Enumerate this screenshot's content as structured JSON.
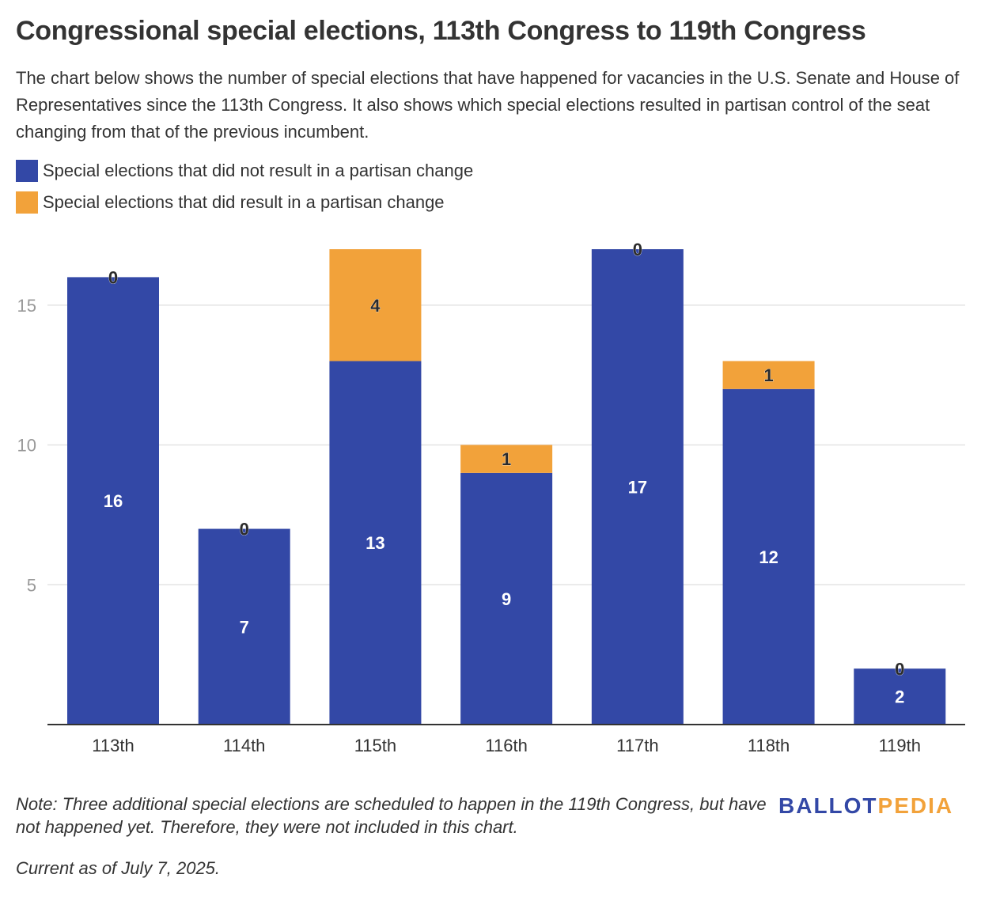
{
  "header": {
    "title": "Congressional special elections, 113th Congress to 119th Congress",
    "subtitle": "The chart below shows the number of special elections that have happened for vacancies in the U.S. Senate and House of Representatives since the 113th Congress. It also shows which special elections resulted in partisan control of the seat changing from that of the previous incumbent."
  },
  "legend": {
    "items": [
      {
        "label": "Special elections that did not result in a partisan change",
        "color": "#3348a6"
      },
      {
        "label": "Special elections that did result in a partisan change",
        "color": "#f2a23a"
      }
    ]
  },
  "chart_data": {
    "type": "bar",
    "stacked": true,
    "categories": [
      "113th",
      "114th",
      "115th",
      "116th",
      "117th",
      "118th",
      "119th"
    ],
    "series": [
      {
        "name": "Special elections that did not result in a partisan change",
        "color": "#3348a6",
        "values": [
          16,
          7,
          13,
          9,
          17,
          12,
          2
        ]
      },
      {
        "name": "Special elections that did result in a partisan change",
        "color": "#f2a23a",
        "values": [
          0,
          0,
          4,
          1,
          0,
          1,
          0
        ]
      }
    ],
    "yticks": [
      5,
      10,
      15
    ],
    "ylim": [
      0,
      17.8
    ],
    "grid": true,
    "legend_position": "top-left"
  },
  "footer": {
    "note": "Note: Three additional special elections are scheduled to happen in the 119th Congress, but have not happened yet. Therefore, they were not included in this chart.",
    "current": "Current as of July 7, 2025.",
    "logo_part1": "BALLOT",
    "logo_part2": "PEDIA"
  }
}
